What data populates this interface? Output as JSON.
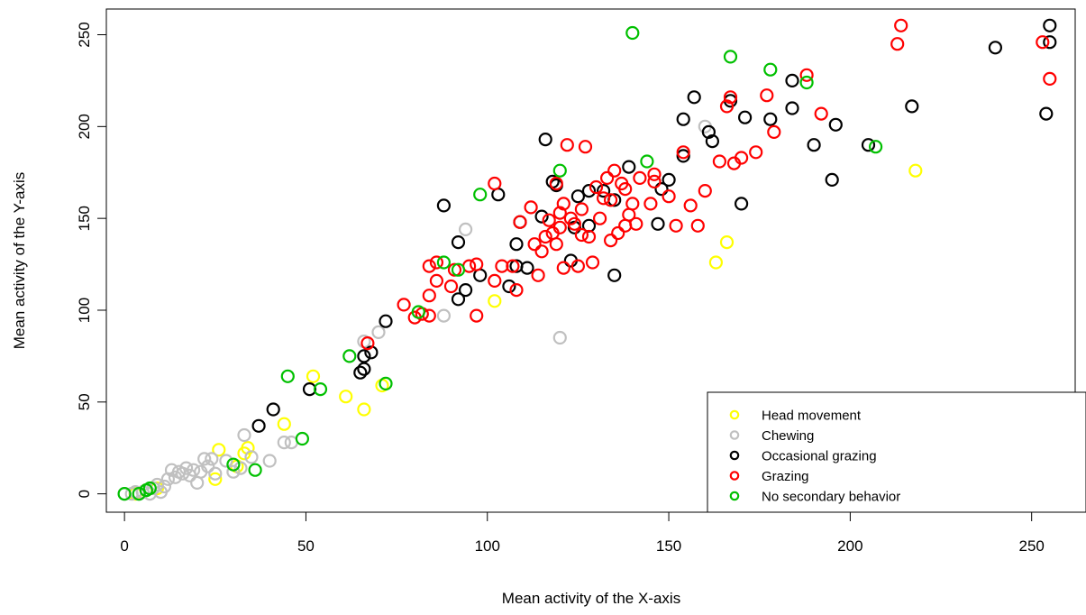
{
  "chart_data": {
    "type": "scatter",
    "xlabel": "Mean activity of the X-axis",
    "ylabel": "Mean activity of the Y-axis",
    "xlim": [
      -5,
      262
    ],
    "ylim": [
      -10,
      264
    ],
    "x_ticks": [
      0,
      50,
      100,
      150,
      200,
      250
    ],
    "y_ticks": [
      0,
      50,
      100,
      150,
      200,
      250
    ],
    "grid": false,
    "legend_position": "bottom-right",
    "series": [
      {
        "name": "Head movement",
        "color": "#ffff00",
        "points": [
          [
            3,
            0
          ],
          [
            6,
            2
          ],
          [
            9,
            3
          ],
          [
            25,
            8
          ],
          [
            26,
            24
          ],
          [
            31,
            15
          ],
          [
            33,
            22
          ],
          [
            34,
            25
          ],
          [
            44,
            38
          ],
          [
            52,
            64
          ],
          [
            61,
            53
          ],
          [
            66,
            46
          ],
          [
            71,
            59
          ],
          [
            102,
            105
          ],
          [
            163,
            126
          ],
          [
            166,
            137
          ],
          [
            218,
            176
          ]
        ]
      },
      {
        "name": "Chewing",
        "color": "#c0c0c0",
        "points": [
          [
            0,
            0
          ],
          [
            2,
            0
          ],
          [
            3,
            1
          ],
          [
            4,
            0
          ],
          [
            5,
            1
          ],
          [
            6,
            2
          ],
          [
            7,
            0
          ],
          [
            8,
            3
          ],
          [
            9,
            5
          ],
          [
            10,
            1
          ],
          [
            11,
            4
          ],
          [
            12,
            8
          ],
          [
            13,
            13
          ],
          [
            14,
            9
          ],
          [
            15,
            12
          ],
          [
            16,
            11
          ],
          [
            17,
            14
          ],
          [
            18,
            10
          ],
          [
            19,
            13
          ],
          [
            20,
            6
          ],
          [
            21,
            12
          ],
          [
            22,
            19
          ],
          [
            23,
            15
          ],
          [
            24,
            19
          ],
          [
            25,
            11
          ],
          [
            28,
            18
          ],
          [
            30,
            12
          ],
          [
            32,
            14
          ],
          [
            33,
            32
          ],
          [
            35,
            20
          ],
          [
            40,
            18
          ],
          [
            44,
            28
          ],
          [
            46,
            28
          ],
          [
            66,
            83
          ],
          [
            70,
            88
          ],
          [
            88,
            97
          ],
          [
            94,
            144
          ],
          [
            120,
            85
          ],
          [
            160,
            200
          ]
        ]
      },
      {
        "name": "Occasional grazing",
        "color": "#000000",
        "points": [
          [
            37,
            37
          ],
          [
            41,
            46
          ],
          [
            51,
            57
          ],
          [
            65,
            66
          ],
          [
            66,
            75
          ],
          [
            66,
            68
          ],
          [
            68,
            77
          ],
          [
            72,
            94
          ],
          [
            88,
            157
          ],
          [
            92,
            106
          ],
          [
            92,
            137
          ],
          [
            94,
            111
          ],
          [
            98,
            119
          ],
          [
            103,
            163
          ],
          [
            106,
            113
          ],
          [
            108,
            124
          ],
          [
            108,
            136
          ],
          [
            109,
            148
          ],
          [
            111,
            123
          ],
          [
            115,
            151
          ],
          [
            116,
            193
          ],
          [
            118,
            170
          ],
          [
            119,
            168
          ],
          [
            123,
            127
          ],
          [
            124,
            145
          ],
          [
            125,
            162
          ],
          [
            128,
            146
          ],
          [
            128,
            165
          ],
          [
            132,
            165
          ],
          [
            135,
            119
          ],
          [
            135,
            160
          ],
          [
            139,
            178
          ],
          [
            147,
            147
          ],
          [
            148,
            166
          ],
          [
            150,
            171
          ],
          [
            154,
            184
          ],
          [
            154,
            204
          ],
          [
            157,
            216
          ],
          [
            161,
            197
          ],
          [
            162,
            192
          ],
          [
            167,
            214
          ],
          [
            170,
            158
          ],
          [
            171,
            205
          ],
          [
            178,
            204
          ],
          [
            184,
            225
          ],
          [
            184,
            210
          ],
          [
            190,
            190
          ],
          [
            195,
            171
          ],
          [
            196,
            201
          ],
          [
            205,
            190
          ],
          [
            217,
            211
          ],
          [
            240,
            243
          ],
          [
            254,
            207
          ],
          [
            255,
            255
          ],
          [
            255,
            246
          ]
        ]
      },
      {
        "name": "Grazing",
        "color": "#ff0000",
        "points": [
          [
            67,
            82
          ],
          [
            77,
            103
          ],
          [
            80,
            96
          ],
          [
            82,
            98
          ],
          [
            84,
            97
          ],
          [
            84,
            108
          ],
          [
            84,
            124
          ],
          [
            86,
            126
          ],
          [
            86,
            116
          ],
          [
            90,
            113
          ],
          [
            91,
            122
          ],
          [
            95,
            124
          ],
          [
            97,
            97
          ],
          [
            97,
            125
          ],
          [
            102,
            116
          ],
          [
            102,
            169
          ],
          [
            104,
            124
          ],
          [
            107,
            124
          ],
          [
            108,
            111
          ],
          [
            109,
            148
          ],
          [
            112,
            156
          ],
          [
            113,
            136
          ],
          [
            114,
            119
          ],
          [
            115,
            132
          ],
          [
            116,
            140
          ],
          [
            117,
            149
          ],
          [
            118,
            142
          ],
          [
            119,
            136
          ],
          [
            119,
            169
          ],
          [
            120,
            145
          ],
          [
            120,
            153
          ],
          [
            121,
            158
          ],
          [
            121,
            123
          ],
          [
            122,
            190
          ],
          [
            123,
            150
          ],
          [
            124,
            147
          ],
          [
            125,
            124
          ],
          [
            126,
            155
          ],
          [
            126,
            141
          ],
          [
            127,
            189
          ],
          [
            128,
            140
          ],
          [
            129,
            126
          ],
          [
            130,
            167
          ],
          [
            131,
            150
          ],
          [
            132,
            161
          ],
          [
            133,
            172
          ],
          [
            134,
            138
          ],
          [
            134,
            160
          ],
          [
            135,
            176
          ],
          [
            136,
            142
          ],
          [
            137,
            169
          ],
          [
            138,
            166
          ],
          [
            138,
            146
          ],
          [
            139,
            152
          ],
          [
            140,
            158
          ],
          [
            141,
            147
          ],
          [
            142,
            172
          ],
          [
            145,
            158
          ],
          [
            146,
            170
          ],
          [
            146,
            174
          ],
          [
            150,
            162
          ],
          [
            152,
            146
          ],
          [
            154,
            186
          ],
          [
            156,
            157
          ],
          [
            158,
            146
          ],
          [
            160,
            165
          ],
          [
            164,
            181
          ],
          [
            166,
            211
          ],
          [
            167,
            216
          ],
          [
            168,
            180
          ],
          [
            170,
            183
          ],
          [
            174,
            186
          ],
          [
            177,
            217
          ],
          [
            179,
            197
          ],
          [
            188,
            228
          ],
          [
            192,
            207
          ],
          [
            213,
            245
          ],
          [
            214,
            255
          ],
          [
            253,
            246
          ],
          [
            255,
            226
          ]
        ]
      },
      {
        "name": "No secondary behavior",
        "color": "#00c000",
        "points": [
          [
            0,
            0
          ],
          [
            4,
            0
          ],
          [
            6,
            2
          ],
          [
            7,
            3
          ],
          [
            30,
            16
          ],
          [
            36,
            13
          ],
          [
            45,
            64
          ],
          [
            49,
            30
          ],
          [
            54,
            57
          ],
          [
            62,
            75
          ],
          [
            72,
            60
          ],
          [
            81,
            99
          ],
          [
            88,
            126
          ],
          [
            92,
            122
          ],
          [
            98,
            163
          ],
          [
            120,
            176
          ],
          [
            140,
            251
          ],
          [
            144,
            181
          ],
          [
            167,
            238
          ],
          [
            178,
            231
          ],
          [
            188,
            224
          ],
          [
            207,
            189
          ]
        ]
      }
    ]
  }
}
